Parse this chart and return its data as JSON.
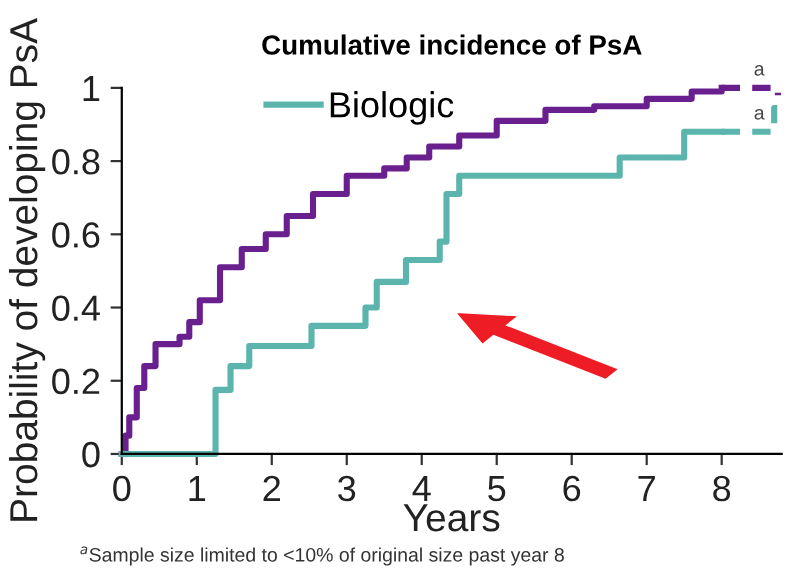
{
  "chart_data": {
    "type": "step",
    "title": "Cumulative incidence of PsA",
    "xlabel": "Years",
    "ylabel": "Probability of developing PsA",
    "xlim": [
      0,
      8.8
    ],
    "ylim": [
      0,
      1
    ],
    "xticks": [
      0,
      1,
      2,
      3,
      4,
      5,
      6,
      7,
      8
    ],
    "yticks": [
      0,
      0.2,
      0.4,
      0.6,
      0.8,
      1
    ],
    "grid": false,
    "legend": "top left",
    "series": [
      {
        "color": "#6a1f8f",
        "x": [
          0,
          0.05,
          0.1,
          0.2,
          0.3,
          0.45,
          0.77,
          0.9,
          1.04,
          1.31,
          1.6,
          1.92,
          2.2,
          2.55,
          3.0,
          3.5,
          3.8,
          4.1,
          4.5,
          5.0,
          5.65,
          6.3,
          7.0,
          7.6,
          8.0
        ],
        "values": [
          0,
          0.05,
          0.1,
          0.18,
          0.24,
          0.3,
          0.32,
          0.36,
          0.42,
          0.51,
          0.56,
          0.6,
          0.65,
          0.71,
          0.76,
          0.78,
          0.81,
          0.84,
          0.87,
          0.91,
          0.94,
          0.95,
          0.97,
          0.99,
          1.0
        ]
      },
      {
        "color": "#6a1f8f",
        "line_style": "dashed",
        "x": [
          8.0,
          8.75
        ],
        "values": [
          1.0,
          0.98
        ]
      },
      {
        "name": "Biologic",
        "color": "#5bb5ad",
        "x": [
          0,
          1.25,
          1.45,
          1.7,
          2.53,
          3.25,
          3.4,
          3.79,
          4.24,
          4.33,
          4.5,
          6.64,
          7.5,
          8.0
        ],
        "values": [
          0,
          0.175,
          0.24,
          0.295,
          0.35,
          0.4,
          0.47,
          0.53,
          0.58,
          0.71,
          0.76,
          0.81,
          0.88,
          0.88
        ]
      },
      {
        "color": "#5bb5ad",
        "line_style": "dashed",
        "x": [
          8.0,
          8.7,
          8.8
        ],
        "values": [
          0.88,
          0.945,
          0.945
        ]
      }
    ],
    "annotations": [
      {
        "text": "a",
        "x": 8.5,
        "y": 1.0
      },
      {
        "text": "a",
        "x": 8.5,
        "y": 0.88
      },
      "$^{a}$Sample size limited to <10% of original size past year 8"
    ]
  }
}
